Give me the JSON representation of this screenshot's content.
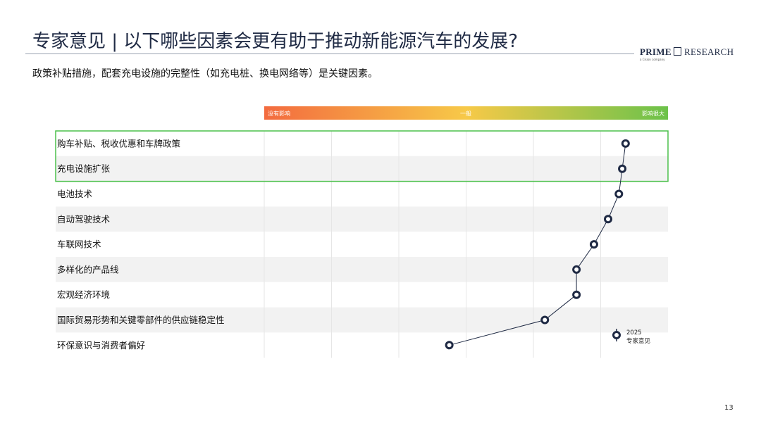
{
  "title": "专家意见 | 以下哪些因素会更有助于推动新能源汽车的发展?",
  "subtitle": "政策补贴措施，配套充电设施的完整性（如充电桩、换电网络等）是关键因素。",
  "logo": {
    "prime": "PRIME",
    "research": "RESEARCH",
    "sub": "a Cision company"
  },
  "page_number": "13",
  "chart_data": {
    "type": "line",
    "scale_labels": {
      "low": "没有影响",
      "mid": "一般",
      "high": "影响很大"
    },
    "gradient_colors": [
      "#f36b3f",
      "#f7c948",
      "#6cc24a"
    ],
    "highlight_color": "#4cc04c",
    "line_color": "#1f2a44",
    "xlim": [
      0,
      6
    ],
    "categories": [
      "购车补贴、税收优惠和车牌政策",
      "充电设施扩张",
      "电池技术",
      "自动驾驶技术",
      "车联网技术",
      "多样化的产品线",
      "宏观经济环境",
      "国际贸易形势和关键零部件的供应链稳定性",
      "环保意识与消费者偏好"
    ],
    "series": [
      {
        "name": "2025 专家意见",
        "values": [
          5.37,
          5.32,
          5.27,
          5.11,
          4.9,
          4.64,
          4.64,
          4.17,
          2.75
        ]
      }
    ],
    "legend": {
      "year": "2025",
      "label": "专家意见",
      "position": "bottom-right"
    },
    "highlighted_rows": [
      0,
      1
    ]
  }
}
